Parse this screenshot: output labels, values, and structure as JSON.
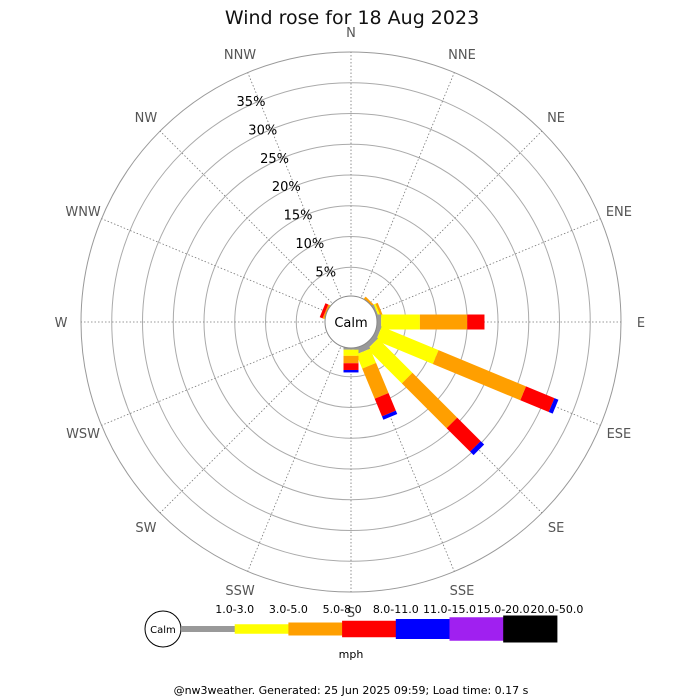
{
  "chart_data": {
    "type": "wind-rose",
    "title": "Wind rose for 18 Aug 2023",
    "directions": [
      "N",
      "NNE",
      "NE",
      "ENE",
      "E",
      "ESE",
      "SE",
      "SSE",
      "S",
      "SSW",
      "SW",
      "WSW",
      "W",
      "WNW",
      "NW",
      "NNW"
    ],
    "rings": [
      "5%",
      "10%",
      "15%",
      "20%",
      "25%",
      "30%",
      "35%"
    ],
    "ring_values": [
      5,
      10,
      15,
      20,
      25,
      30,
      35
    ],
    "rmax": 40,
    "calm_label": "Calm",
    "units": "mph",
    "bins": [
      {
        "range": "1.0-3.0",
        "color": "#999999"
      },
      {
        "range": "3.0-5.0",
        "color": "#ffff00"
      },
      {
        "range": "5.0-8.0",
        "color": "#ff9f00"
      },
      {
        "range": "8.0-11.0",
        "color": "#ff0000"
      },
      {
        "range": "11.0-15.0",
        "color": "#0000ff"
      },
      {
        "range": "15.0-20.0",
        "color": "#a020f0"
      },
      {
        "range": "20.0-50.0",
        "color": "#000000"
      }
    ],
    "series": [
      {
        "direction": "N",
        "values": [
          0,
          0,
          0,
          0,
          0,
          0,
          0
        ]
      },
      {
        "direction": "NNE",
        "values": [
          0,
          0,
          0,
          0,
          0,
          0,
          0
        ]
      },
      {
        "direction": "NE",
        "values": [
          0,
          0.3,
          0.4,
          0,
          0,
          0,
          0
        ]
      },
      {
        "direction": "ENE",
        "values": [
          0.6,
          0.3,
          0.4,
          0,
          0,
          0,
          0
        ]
      },
      {
        "direction": "E",
        "values": [
          1.0,
          6.3,
          7.7,
          2.8,
          0,
          0,
          0
        ]
      },
      {
        "direction": "ESE",
        "values": [
          1.0,
          10.0,
          15.4,
          5.0,
          0.7,
          0,
          0
        ]
      },
      {
        "direction": "SE",
        "values": [
          1.1,
          7.9,
          10.3,
          5.4,
          0.8,
          0,
          0
        ]
      },
      {
        "direction": "SSE",
        "values": [
          1.3,
          2.5,
          5.3,
          3.1,
          0.6,
          0,
          0
        ]
      },
      {
        "direction": "S",
        "values": [
          0.6,
          1.0,
          1.2,
          1.1,
          0.4,
          0,
          0
        ]
      },
      {
        "direction": "SSW",
        "values": [
          0,
          0,
          0,
          0,
          0,
          0,
          0
        ]
      },
      {
        "direction": "SW",
        "values": [
          0,
          0,
          0,
          0,
          0,
          0,
          0
        ]
      },
      {
        "direction": "WSW",
        "values": [
          0,
          0,
          0,
          0,
          0,
          0,
          0
        ]
      },
      {
        "direction": "W",
        "values": [
          0,
          0,
          0,
          0,
          0,
          0,
          0
        ]
      },
      {
        "direction": "WNW",
        "values": [
          0,
          0.3,
          0.3,
          0.5,
          0,
          0,
          0
        ]
      },
      {
        "direction": "NW",
        "values": [
          0,
          0,
          0,
          0,
          0,
          0,
          0
        ]
      },
      {
        "direction": "NNW",
        "values": [
          0,
          0,
          0,
          0,
          0,
          0,
          0
        ]
      }
    ],
    "footer": "@nw3weather. Generated: 25 Jun 2025 09:59; Load time: 0.17 s"
  }
}
